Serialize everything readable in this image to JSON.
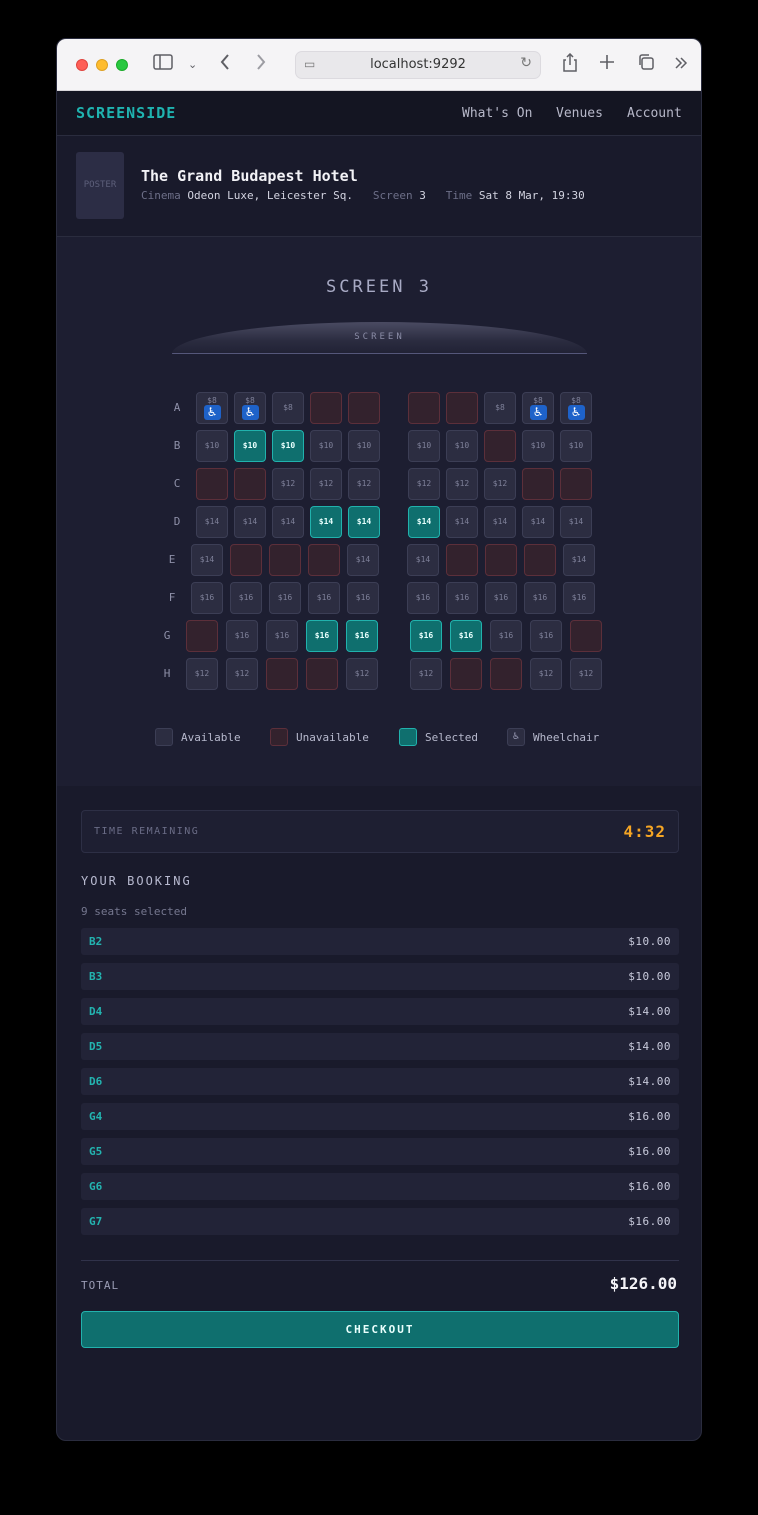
{
  "browser": {
    "url": "localhost:9292",
    "icons": [
      "sidebar-icon",
      "chevron-down-icon",
      "back-icon",
      "forward-icon",
      "share-icon",
      "new-tab-icon",
      "tabs-icon",
      "more-icon"
    ]
  },
  "nav": {
    "brand": "SCREENSIDE",
    "links": [
      "What's On",
      "Venues",
      "Account"
    ]
  },
  "movie": {
    "poster_label": "POSTER",
    "title": "The Grand Budapest Hotel",
    "cinema_label": "Cinema",
    "cinema": "Odeon Luxe, Leicester Sq.",
    "screen_label": "Screen",
    "screen": "3",
    "time_label": "Time",
    "time": "Sat 8 Mar, 19:30"
  },
  "seatmap": {
    "heading": "SCREEN 3",
    "screen_label": "SCREEN",
    "rows": [
      {
        "label": "A",
        "left": [
          [
            "$8",
            "wheelchair"
          ],
          [
            "$8",
            "wheelchair"
          ],
          [
            "$8",
            "available"
          ],
          [
            "",
            "unavailable"
          ],
          [
            "",
            "unavailable"
          ]
        ],
        "right": [
          [
            "",
            "unavailable"
          ],
          [
            "",
            "unavailable"
          ],
          [
            "$8",
            "available"
          ],
          [
            "$8",
            "wheelchair"
          ],
          [
            "$8",
            "wheelchair"
          ]
        ]
      },
      {
        "label": "B",
        "left": [
          [
            "$10",
            "available"
          ],
          [
            "$10",
            "selected"
          ],
          [
            "$10",
            "selected"
          ],
          [
            "$10",
            "available"
          ],
          [
            "$10",
            "available"
          ]
        ],
        "right": [
          [
            "$10",
            "available"
          ],
          [
            "$10",
            "available"
          ],
          [
            "",
            "unavailable"
          ],
          [
            "$10",
            "available"
          ],
          [
            "$10",
            "available"
          ]
        ]
      },
      {
        "label": "C",
        "left": [
          [
            "",
            "unavailable"
          ],
          [
            "",
            "unavailable"
          ],
          [
            "$12",
            "available"
          ],
          [
            "$12",
            "available"
          ],
          [
            "$12",
            "available"
          ]
        ],
        "right": [
          [
            "$12",
            "available"
          ],
          [
            "$12",
            "available"
          ],
          [
            "$12",
            "available"
          ],
          [
            "",
            "unavailable"
          ],
          [
            "",
            "unavailable"
          ]
        ]
      },
      {
        "label": "D",
        "left": [
          [
            "$14",
            "available"
          ],
          [
            "$14",
            "available"
          ],
          [
            "$14",
            "available"
          ],
          [
            "$14",
            "selected"
          ],
          [
            "$14",
            "selected"
          ]
        ],
        "right": [
          [
            "$14",
            "selected"
          ],
          [
            "$14",
            "available"
          ],
          [
            "$14",
            "available"
          ],
          [
            "$14",
            "available"
          ],
          [
            "$14",
            "available"
          ]
        ]
      },
      {
        "label": "E",
        "left": [
          [
            "$14",
            "available"
          ],
          [
            "",
            "unavailable"
          ],
          [
            "",
            "unavailable"
          ],
          [
            "",
            "unavailable"
          ],
          [
            "$14",
            "available"
          ]
        ],
        "right": [
          [
            "$14",
            "available"
          ],
          [
            "",
            "unavailable"
          ],
          [
            "",
            "unavailable"
          ],
          [
            "",
            "unavailable"
          ],
          [
            "$14",
            "available"
          ]
        ]
      },
      {
        "label": "F",
        "left": [
          [
            "$16",
            "available"
          ],
          [
            "$16",
            "available"
          ],
          [
            "$16",
            "available"
          ],
          [
            "$16",
            "available"
          ],
          [
            "$16",
            "available"
          ]
        ],
        "right": [
          [
            "$16",
            "available"
          ],
          [
            "$16",
            "available"
          ],
          [
            "$16",
            "available"
          ],
          [
            "$16",
            "available"
          ],
          [
            "$16",
            "available"
          ]
        ]
      },
      {
        "label": "G",
        "left": [
          [
            "",
            "unavailable"
          ],
          [
            "$16",
            "available"
          ],
          [
            "$16",
            "available"
          ],
          [
            "$16",
            "selected"
          ],
          [
            "$16",
            "selected"
          ]
        ],
        "right": [
          [
            "$16",
            "selected"
          ],
          [
            "$16",
            "selected"
          ],
          [
            "$16",
            "available"
          ],
          [
            "$16",
            "available"
          ],
          [
            "",
            "unavailable"
          ]
        ]
      },
      {
        "label": "H",
        "left": [
          [
            "$12",
            "available"
          ],
          [
            "$12",
            "available"
          ],
          [
            "",
            "unavailable"
          ],
          [
            "",
            "unavailable"
          ],
          [
            "$12",
            "available"
          ]
        ],
        "right": [
          [
            "$12",
            "available"
          ],
          [
            "",
            "unavailable"
          ],
          [
            "",
            "unavailable"
          ],
          [
            "$12",
            "available"
          ],
          [
            "$12",
            "available"
          ]
        ]
      }
    ],
    "legend": {
      "available": "Available",
      "unavailable": "Unavailable",
      "selected": "Selected",
      "wheelchair": "Wheelchair"
    }
  },
  "booking": {
    "timer_label": "TIME REMAINING",
    "timer_value": "4:32",
    "heading": "YOUR BOOKING",
    "seat_count": "9 seats selected",
    "items": [
      {
        "seat": "B2",
        "price": "$10.00"
      },
      {
        "seat": "B3",
        "price": "$10.00"
      },
      {
        "seat": "D4",
        "price": "$14.00"
      },
      {
        "seat": "D5",
        "price": "$14.00"
      },
      {
        "seat": "D6",
        "price": "$14.00"
      },
      {
        "seat": "G4",
        "price": "$16.00"
      },
      {
        "seat": "G5",
        "price": "$16.00"
      },
      {
        "seat": "G6",
        "price": "$16.00"
      },
      {
        "seat": "G7",
        "price": "$16.00"
      }
    ],
    "total_label": "TOTAL",
    "total_value": "$126.00",
    "checkout_label": "CHECKOUT"
  },
  "colors": {
    "accent": "#1fb3b0",
    "selected_seat": "#0f6f6e",
    "unavailable_seat": "#33222d",
    "timer": "#f5a524",
    "background": "#191a2b"
  }
}
